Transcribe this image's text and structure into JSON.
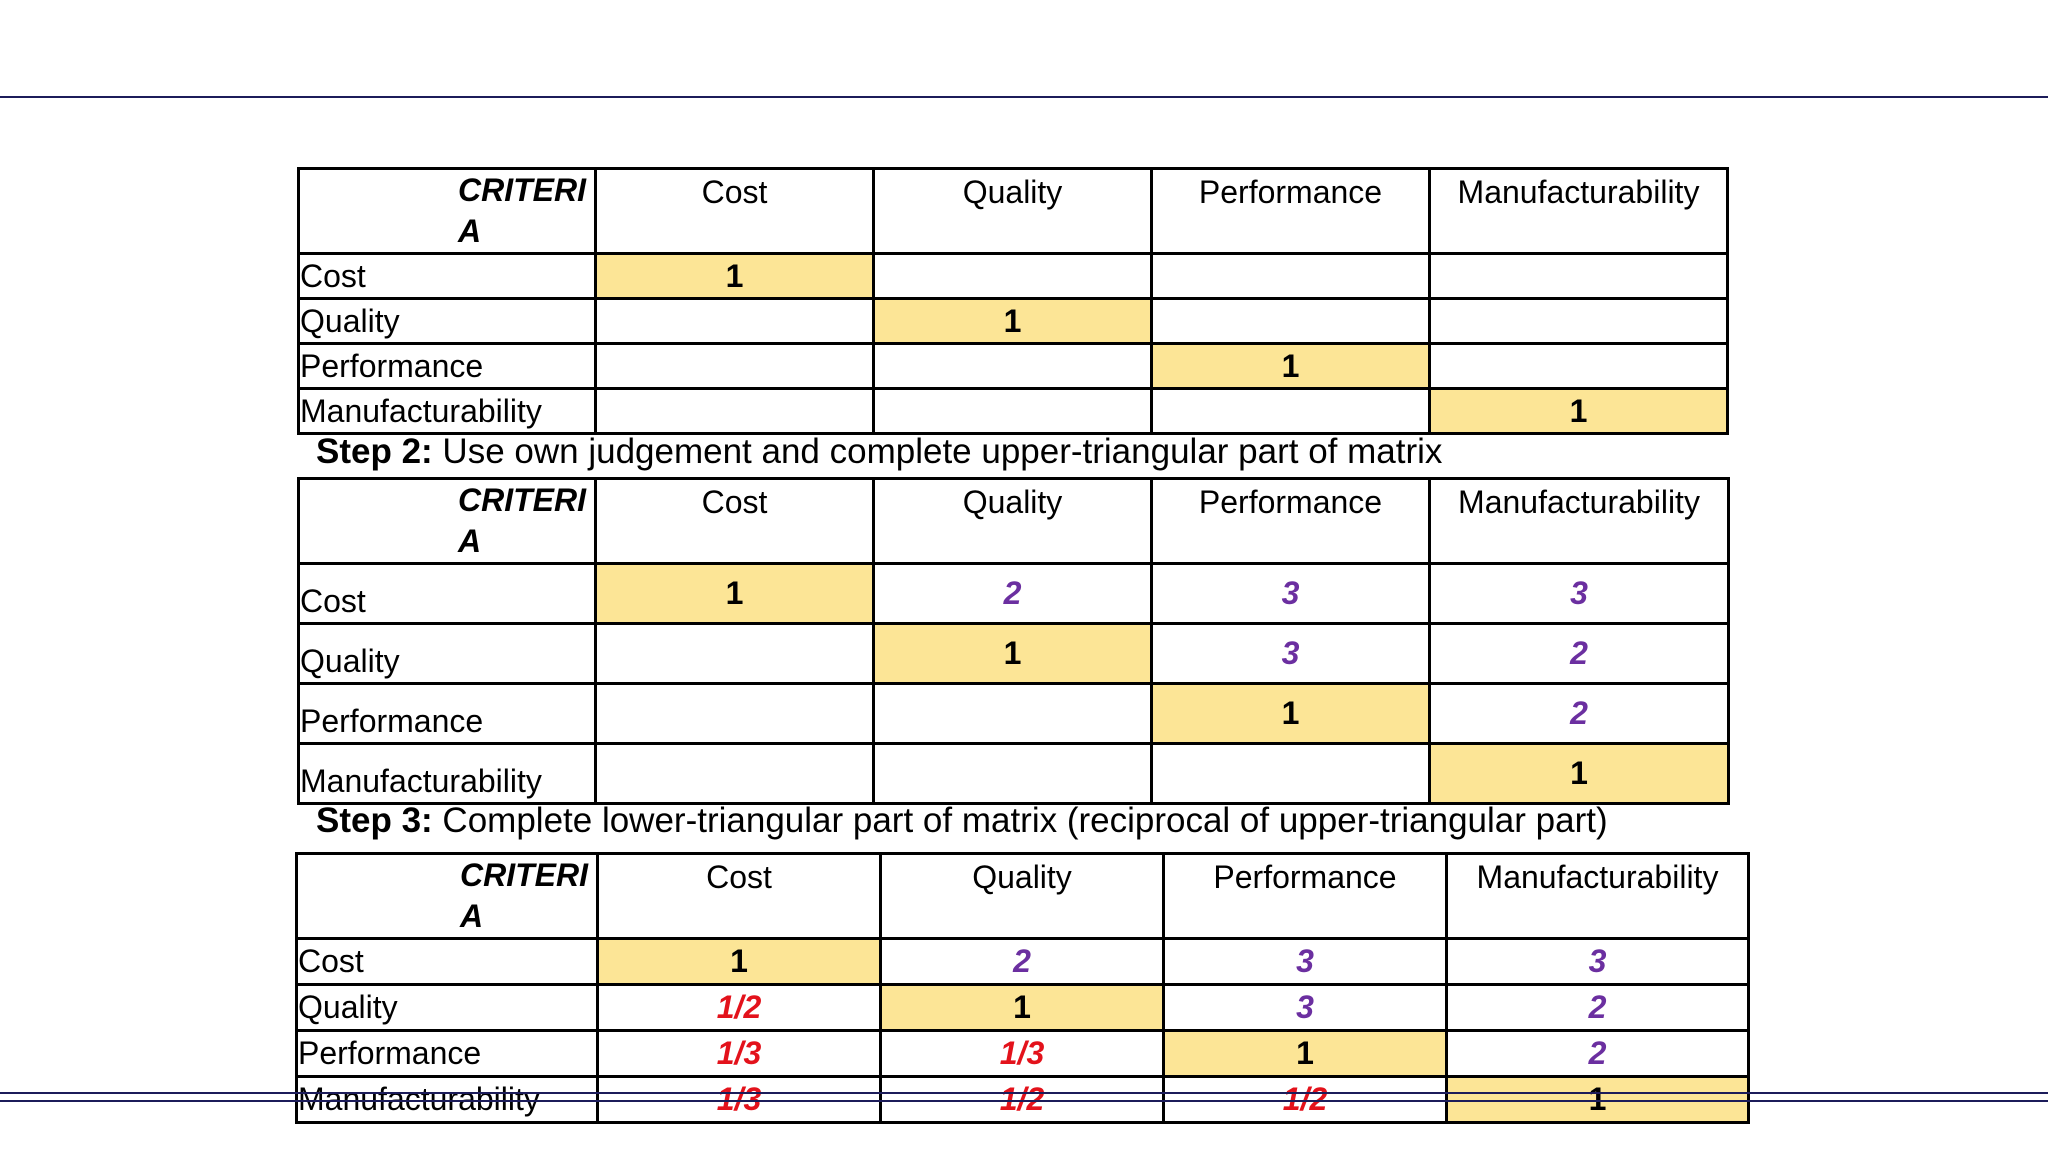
{
  "criteria_label": "CRITERIA",
  "criteria_label_line1": "CRITERI",
  "criteria_label_line2": "A",
  "columns": [
    "Cost",
    "Quality",
    "Performance",
    "Manufacturability"
  ],
  "rows": [
    "Cost",
    "Quality",
    "Performance",
    "Manufacturability"
  ],
  "step2": {
    "label": "Step 2:",
    "text": " Use own judgement and complete upper-triangular part of matrix"
  },
  "step3": {
    "label": "Step 3:",
    "text": " Complete lower-triangular part of matrix (reciprocal of upper-triangular part)"
  },
  "tables": [
    {
      "name": "step1",
      "cells": [
        [
          "1",
          "",
          "",
          ""
        ],
        [
          "",
          "1",
          "",
          ""
        ],
        [
          "",
          "",
          "1",
          ""
        ],
        [
          "",
          "",
          "",
          "1"
        ]
      ]
    },
    {
      "name": "step2",
      "cells": [
        [
          "1",
          "2",
          "3",
          "3"
        ],
        [
          "",
          "1",
          "3",
          "2"
        ],
        [
          "",
          "",
          "1",
          "2"
        ],
        [
          "",
          "",
          "",
          "1"
        ]
      ]
    },
    {
      "name": "step3",
      "cells": [
        [
          "1",
          "2",
          "3",
          "3"
        ],
        [
          "1/2",
          "1",
          "3",
          "2"
        ],
        [
          "1/3",
          "1/3",
          "1",
          "2"
        ],
        [
          "1/3",
          "1/2",
          "1/2",
          "1"
        ]
      ]
    }
  ],
  "colors": {
    "diagonal_fill": "#fce596",
    "upper_text": "#6b2fa0",
    "lower_text": "#e3121b",
    "rule": "#1c1c5a"
  }
}
